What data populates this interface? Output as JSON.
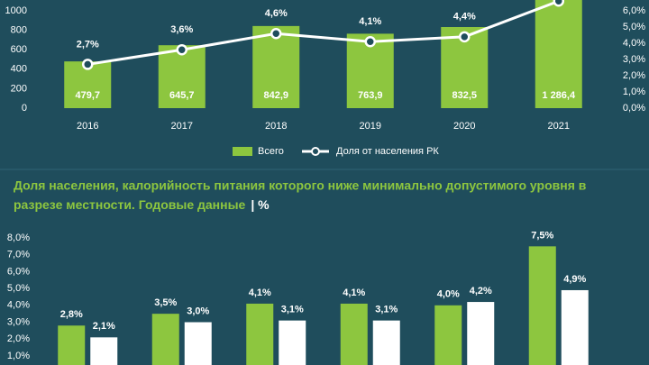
{
  "chart_data": [
    {
      "type": "combo",
      "categories": [
        "2016",
        "2017",
        "2018",
        "2019",
        "2020",
        "2021"
      ],
      "series": [
        {
          "name": "Всего",
          "color": "#8dc63f",
          "values": [
            479.7,
            645.7,
            842.9,
            763.9,
            832.5,
            1286.4
          ],
          "value_labels": [
            "479,7",
            "645,7",
            "842,9",
            "763,9",
            "832,5",
            "1 286,4"
          ]
        },
        {
          "name": "Доля от населения РК",
          "color": "#ffffff",
          "axis": "y2",
          "values": [
            2.7,
            3.6,
            4.6,
            4.1,
            4.4,
            6.6
          ],
          "value_labels": [
            "2,7%",
            "3,6%",
            "4,6%",
            "4,1%",
            "4,4%",
            null
          ]
        }
      ],
      "ylim": [
        0,
        1110
      ],
      "yticks": [
        0,
        200,
        400,
        600,
        800,
        1000
      ],
      "y2lim": [
        0,
        6.67
      ],
      "y2ticks": [
        {
          "value": 0,
          "label": "0,0%"
        },
        {
          "value": 1,
          "label": "1,0%"
        },
        {
          "value": 2,
          "label": "2,0%"
        },
        {
          "value": 3,
          "label": "3,0%"
        },
        {
          "value": 4,
          "label": "4,0%"
        },
        {
          "value": 5,
          "label": "5,0%"
        },
        {
          "value": 6,
          "label": "6,0%"
        }
      ],
      "legend": "bottom"
    },
    {
      "type": "bar",
      "title": [
        "Доля населения, калорийность питания которого ниже минимально допустимого уровня в",
        "разрезе местности. Годовые данные"
      ],
      "subtitle": "| %",
      "categories": [
        null,
        null,
        null,
        null,
        null,
        null
      ],
      "series": [
        {
          "color": "#8dc63f",
          "values": [
            2.8,
            3.5,
            4.1,
            4.1,
            4.0,
            7.5
          ],
          "value_labels": [
            "2,8%",
            "3,5%",
            "4,1%",
            "4,1%",
            "4,0%",
            "7,5%"
          ]
        },
        {
          "color": "#ffffff",
          "values": [
            2.1,
            3.0,
            3.1,
            3.1,
            4.2,
            4.9
          ],
          "value_labels": [
            "2,1%",
            "3,0%",
            "3,1%",
            "3,1%",
            "4,2%",
            "4,9%"
          ]
        }
      ],
      "ylim": [
        0,
        8
      ],
      "yticks": [
        {
          "value": 1,
          "label": "1,0%"
        },
        {
          "value": 2,
          "label": "2,0%"
        },
        {
          "value": 3,
          "label": "3,0%"
        },
        {
          "value": 4,
          "label": "4,0%"
        },
        {
          "value": 5,
          "label": "5,0%"
        },
        {
          "value": 6,
          "label": "6,0%"
        },
        {
          "value": 7,
          "label": "7,0%"
        },
        {
          "value": 8,
          "label": "8,0%"
        }
      ]
    }
  ]
}
